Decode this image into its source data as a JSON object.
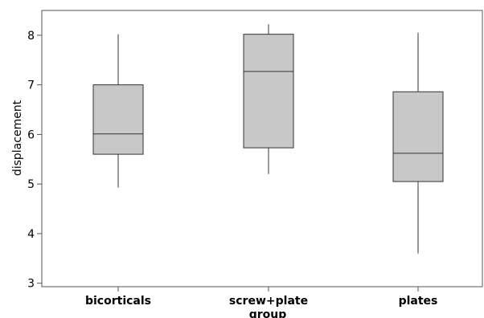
{
  "chart_data": {
    "type": "box",
    "xlabel": "group",
    "ylabel": "displacement",
    "ylim": [
      2.93,
      8.5
    ],
    "yticks": [
      3,
      4,
      5,
      6,
      7,
      8
    ],
    "categories": [
      "bicorticals",
      "screw+plate",
      "plates"
    ],
    "boxes": [
      {
        "category": "bicorticals",
        "min": 4.93,
        "q1": 5.6,
        "median": 6.01,
        "q3": 7.0,
        "max": 8.02
      },
      {
        "category": "screw+plate",
        "min": 5.2,
        "q1": 5.73,
        "median": 7.27,
        "q3": 8.02,
        "max": 8.22
      },
      {
        "category": "plates",
        "min": 3.6,
        "q1": 5.05,
        "median": 5.62,
        "q3": 6.86,
        "max": 8.05
      }
    ],
    "box_fill": "#c8c8c8",
    "box_stroke": "#333333",
    "grid": false,
    "legend": "none"
  }
}
